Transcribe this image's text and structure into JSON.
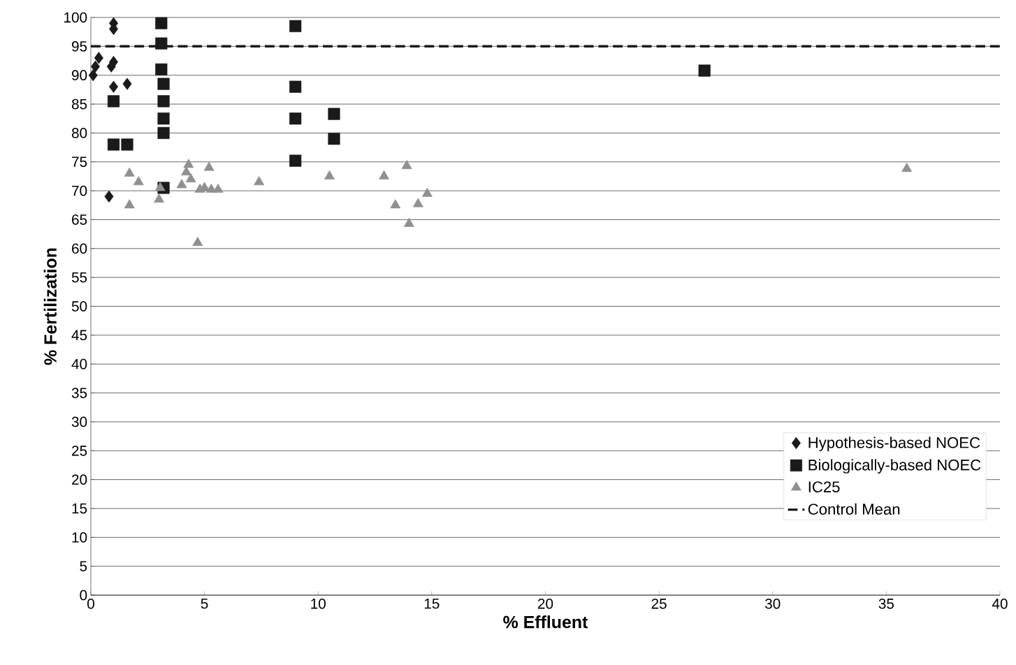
{
  "chart_data": {
    "type": "scatter",
    "xlabel": "% Effluent",
    "ylabel": "% Fertilization",
    "xlim": [
      0,
      40
    ],
    "ylim": [
      0,
      100
    ],
    "xticks": [
      0,
      5,
      10,
      15,
      20,
      25,
      30,
      35,
      40
    ],
    "yticks": [
      0,
      5,
      10,
      15,
      20,
      25,
      30,
      35,
      40,
      45,
      50,
      55,
      60,
      65,
      70,
      75,
      80,
      85,
      90,
      95,
      100
    ],
    "grid": "y",
    "legend": "bottom right",
    "series": [
      {
        "name": "Hypothesis-based NOEC",
        "color": "#1a1a1a",
        "marker": "diamond",
        "x": [
          1,
          1,
          0.1,
          0.2,
          0.35,
          0.9,
          1,
          1,
          1.6,
          0.8
        ],
        "values": [
          99,
          98,
          90,
          91.5,
          93,
          91.5,
          92.3,
          88,
          88.5,
          69
        ]
      },
      {
        "name": "Biologically-based NOEC",
        "color": "#1a1a1a",
        "marker": "square",
        "x": [
          3.1,
          3.1,
          3.1,
          3.2,
          3.2,
          3.2,
          3.2,
          3.2,
          1,
          1,
          1.6,
          9,
          9,
          9,
          9,
          10.7,
          10.7,
          27
        ],
        "values": [
          99,
          95.5,
          91,
          88.5,
          85.5,
          82.5,
          80,
          70.5,
          85.5,
          78,
          78,
          98.5,
          88,
          82.5,
          75.2,
          83.3,
          79,
          90.8
        ]
      },
      {
        "name": "IC25",
        "color": "#909090",
        "marker": "triangle",
        "x": [
          1.7,
          2.1,
          1.7,
          3,
          3.05,
          4,
          4.2,
          4.3,
          4.4,
          4.8,
          5,
          5.3,
          5.6,
          5.2,
          4.7,
          7.4,
          10.5,
          12.9,
          13.9,
          13.4,
          14,
          14.4,
          14.8,
          35.9
        ],
        "values": [
          73,
          71.5,
          67.5,
          68.5,
          70.5,
          71,
          73.2,
          74.5,
          72,
          70.2,
          70.5,
          70.2,
          70.2,
          74,
          61,
          71.5,
          72.5,
          72.5,
          74.3,
          67.5,
          64.3,
          67.7,
          69.5,
          73.8
        ]
      }
    ],
    "ref_lines": [
      {
        "axis": "y",
        "value": 95,
        "label": "Control Mean",
        "color": "#1a1a1a",
        "line_style": "dashed"
      }
    ]
  }
}
